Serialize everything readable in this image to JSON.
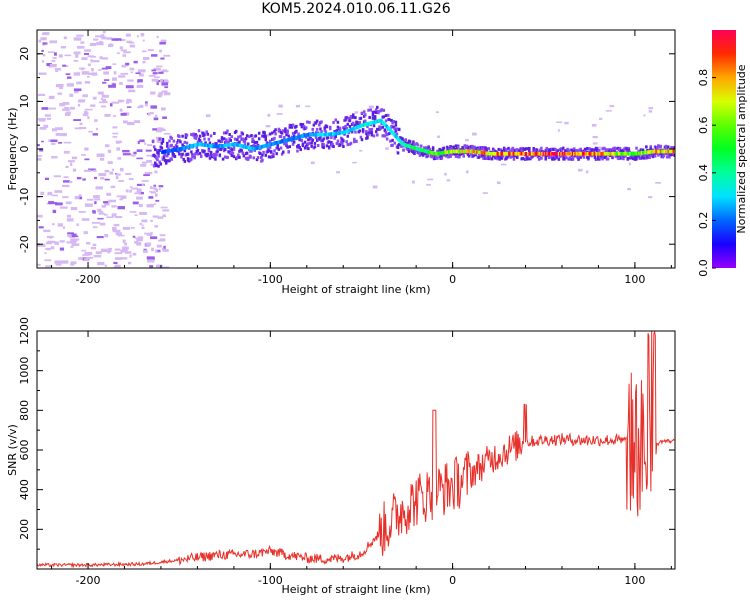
{
  "title": "KOM5.2024.010.06.11.G26",
  "chart_data": [
    {
      "type": "heatmap",
      "xlabel": "Height of straight line (km)",
      "ylabel": "Frequency (Hz)",
      "xlim": [
        -228,
        122
      ],
      "ylim": [
        -25,
        25
      ],
      "x_ticks": [
        -200,
        -100,
        0,
        100
      ],
      "y_ticks": [
        -20,
        -10,
        0,
        10,
        20
      ],
      "colorbar": {
        "label": "Normalized spectral amplitude",
        "range": [
          0,
          1
        ],
        "ticks": [
          "0.0",
          "0.2",
          "0.4",
          "0.6",
          "0.8"
        ],
        "colormap": "rainbow (violet-blue-cyan-green-yellow-red-magenta)"
      },
      "signal_trace": [
        {
          "x": -165,
          "y": -1,
          "a": 0.15
        },
        {
          "x": -150,
          "y": 0,
          "a": 0.22
        },
        {
          "x": -140,
          "y": 1,
          "a": 0.3
        },
        {
          "x": -130,
          "y": 0.5,
          "a": 0.25
        },
        {
          "x": -120,
          "y": 1,
          "a": 0.3
        },
        {
          "x": -110,
          "y": 0,
          "a": 0.28
        },
        {
          "x": -100,
          "y": 1,
          "a": 0.25
        },
        {
          "x": -90,
          "y": 2,
          "a": 0.22
        },
        {
          "x": -80,
          "y": 3,
          "a": 0.25
        },
        {
          "x": -70,
          "y": 3,
          "a": 0.3
        },
        {
          "x": -60,
          "y": 3.5,
          "a": 0.3
        },
        {
          "x": -50,
          "y": 5,
          "a": 0.35
        },
        {
          "x": -40,
          "y": 6,
          "a": 0.35
        },
        {
          "x": -35,
          "y": 4,
          "a": 0.3
        },
        {
          "x": -28,
          "y": 1,
          "a": 0.4
        },
        {
          "x": -20,
          "y": 0,
          "a": 0.5
        },
        {
          "x": -10,
          "y": -1,
          "a": 0.6
        },
        {
          "x": 0,
          "y": -0.5,
          "a": 0.7
        },
        {
          "x": 10,
          "y": -0.5,
          "a": 0.8
        },
        {
          "x": 20,
          "y": -1,
          "a": 0.85
        },
        {
          "x": 30,
          "y": -1,
          "a": 0.9
        },
        {
          "x": 40,
          "y": -1,
          "a": 0.95
        },
        {
          "x": 50,
          "y": -1,
          "a": 1.0
        },
        {
          "x": 60,
          "y": -1,
          "a": 0.95
        },
        {
          "x": 70,
          "y": -1,
          "a": 0.9
        },
        {
          "x": 80,
          "y": -1,
          "a": 0.9
        },
        {
          "x": 90,
          "y": -1,
          "a": 0.7
        },
        {
          "x": 100,
          "y": -1,
          "a": 0.6
        },
        {
          "x": 110,
          "y": -0.5,
          "a": 0.8
        },
        {
          "x": 120,
          "y": -0.5,
          "a": 0.85
        }
      ]
    },
    {
      "type": "line",
      "xlabel": "Height of straight line (km)",
      "ylabel": "SNR (v/v)",
      "xlim": [
        -228,
        122
      ],
      "ylim": [
        0,
        1200
      ],
      "x_ticks": [
        -200,
        -100,
        0,
        100
      ],
      "y_ticks": [
        200,
        400,
        600,
        800,
        1000,
        1200
      ],
      "series": [
        {
          "color": "#e8302a",
          "x": [
            -228,
            -200,
            -170,
            -150,
            -130,
            -110,
            -100,
            -90,
            -80,
            -70,
            -60,
            -50,
            -40,
            -30,
            -20,
            -10,
            0,
            10,
            20,
            30,
            40,
            50,
            60,
            70,
            80,
            90,
            100,
            105,
            110,
            115,
            122
          ],
          "y": [
            20,
            20,
            25,
            45,
            70,
            75,
            90,
            70,
            55,
            50,
            55,
            80,
            180,
            280,
            350,
            390,
            420,
            480,
            550,
            600,
            640,
            650,
            655,
            650,
            650,
            650,
            630,
            600,
            620,
            645,
            645
          ]
        }
      ]
    }
  ]
}
